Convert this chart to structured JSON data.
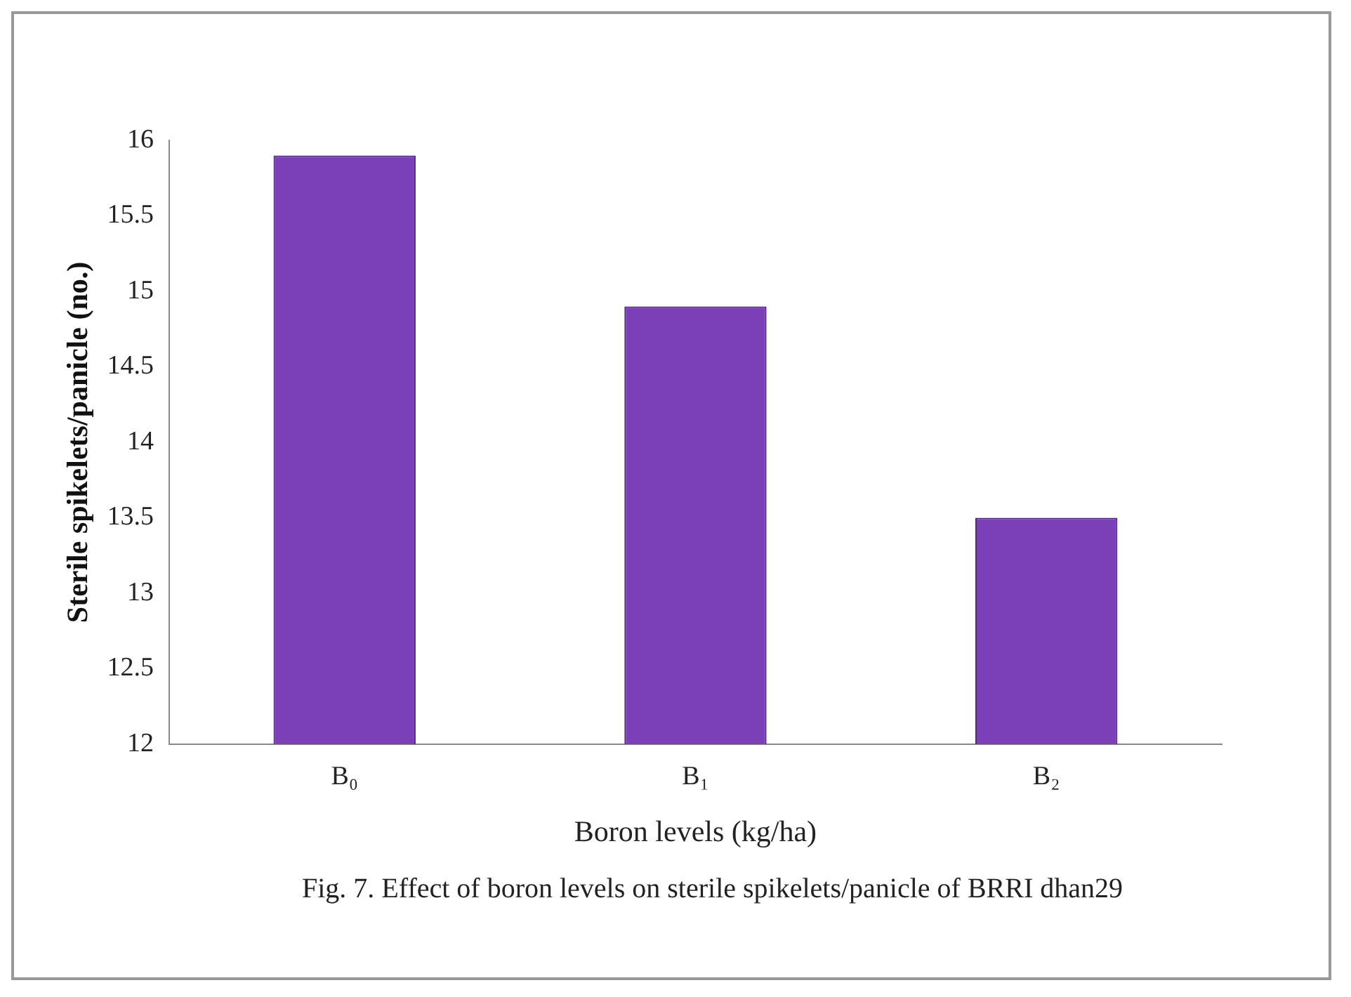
{
  "chart_data": {
    "type": "bar",
    "xlabel": "Boron levels (kg/ha)",
    "ylabel": "Sterile spikelets/panicle (no.)",
    "categories": [
      "B₀",
      "B₁",
      "B₂"
    ],
    "values": [
      15.9,
      14.9,
      13.5
    ],
    "color": "#7b3fb8",
    "ylim": [
      12,
      16
    ],
    "yticks": [
      12,
      12.5,
      13,
      13.5,
      14,
      14.5,
      15,
      15.5,
      16
    ],
    "grid": false,
    "legend": false,
    "annotations": [
      "Fig. 7. Effect of boron levels on sterile spikelets/panicle of BRRI dhan29"
    ]
  }
}
